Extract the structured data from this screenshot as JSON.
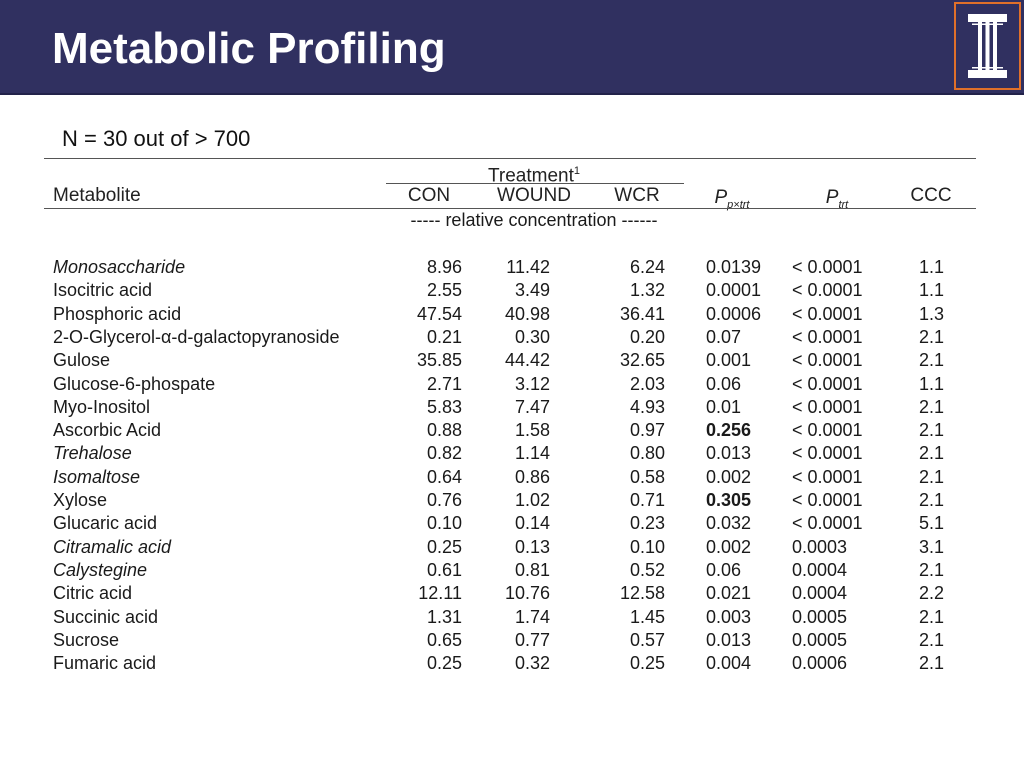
{
  "slide": {
    "title": "Metabolic Profiling",
    "subtitle": "N = 30 out of > 700"
  },
  "logo": {
    "icon": "illinois-i-logo-icon",
    "border_color": "#e0702a",
    "bg_color": "#303060"
  },
  "table": {
    "header": {
      "metabolite": "Metabolite",
      "treatment": "Treatment",
      "treatment_sup": "1",
      "con": "CON",
      "wound": "WOUND",
      "wcr": "WCR",
      "p_main": "P",
      "p_sub": "p×trt",
      "ptrt_main": "P",
      "ptrt_sub": "trt",
      "ccc": "CCC",
      "units": "----- relative concentration ------"
    },
    "rows": [
      {
        "name": "Monosaccharide",
        "italic": true,
        "con": "8.96",
        "wound": "11.42",
        "wcr": "6.24",
        "p": "0.0139",
        "bold": false,
        "ptrt": "< 0.0001",
        "ccc": "1.1"
      },
      {
        "name": "Isocitric acid",
        "italic": false,
        "con": "2.55",
        "wound": "3.49",
        "wcr": "1.32",
        "p": "0.0001",
        "bold": false,
        "ptrt": "< 0.0001",
        "ccc": "1.1"
      },
      {
        "name": "Phosphoric acid",
        "italic": false,
        "con": "47.54",
        "wound": "40.98",
        "wcr": "36.41",
        "p": "0.0006",
        "bold": false,
        "ptrt": "< 0.0001",
        "ccc": "1.3"
      },
      {
        "name": "2-O-Glycerol-α-d-galactopyranoside",
        "italic": false,
        "con": "0.21",
        "wound": "0.30",
        "wcr": "0.20",
        "p": "0.07",
        "bold": false,
        "ptrt": "< 0.0001",
        "ccc": "2.1"
      },
      {
        "name": "Gulose",
        "italic": false,
        "con": "35.85",
        "wound": "44.42",
        "wcr": "32.65",
        "p": "0.001",
        "bold": false,
        "ptrt": "< 0.0001",
        "ccc": "2.1"
      },
      {
        "name": "Glucose-6-phospate",
        "italic": false,
        "con": "2.71",
        "wound": "3.12",
        "wcr": "2.03",
        "p": "0.06",
        "bold": false,
        "ptrt": "< 0.0001",
        "ccc": "1.1"
      },
      {
        "name": "Myo-Inositol",
        "italic": false,
        "con": "5.83",
        "wound": "7.47",
        "wcr": "4.93",
        "p": "0.01",
        "bold": false,
        "ptrt": "< 0.0001",
        "ccc": "2.1"
      },
      {
        "name": "Ascorbic Acid",
        "italic": false,
        "con": "0.88",
        "wound": "1.58",
        "wcr": "0.97",
        "p": "0.256",
        "bold": true,
        "ptrt": "< 0.0001",
        "ccc": "2.1"
      },
      {
        "name": "Trehalose",
        "italic": true,
        "con": "0.82",
        "wound": "1.14",
        "wcr": "0.80",
        "p": "0.013",
        "bold": false,
        "ptrt": "< 0.0001",
        "ccc": "2.1"
      },
      {
        "name": "Isomaltose",
        "italic": true,
        "con": "0.64",
        "wound": "0.86",
        "wcr": "0.58",
        "p": "0.002",
        "bold": false,
        "ptrt": "< 0.0001",
        "ccc": "2.1"
      },
      {
        "name": "Xylose",
        "italic": false,
        "con": "0.76",
        "wound": "1.02",
        "wcr": "0.71",
        "p": "0.305",
        "bold": true,
        "ptrt": "< 0.0001",
        "ccc": "2.1"
      },
      {
        "name": "Glucaric acid",
        "italic": false,
        "con": "0.10",
        "wound": "0.14",
        "wcr": "0.23",
        "p": "0.032",
        "bold": false,
        "ptrt": "< 0.0001",
        "ccc": "5.1"
      },
      {
        "name": "Citramalic acid",
        "italic": true,
        "con": "0.25",
        "wound": "0.13",
        "wcr": "0.10",
        "p": "0.002",
        "bold": false,
        "ptrt": "0.0003",
        "ccc": "3.1"
      },
      {
        "name": "Calystegine",
        "italic": true,
        "con": "0.61",
        "wound": "0.81",
        "wcr": "0.52",
        "p": "0.06",
        "bold": false,
        "ptrt": "0.0004",
        "ccc": "2.1"
      },
      {
        "name": "Citric acid",
        "italic": false,
        "con": "12.11",
        "wound": "10.76",
        "wcr": "12.58",
        "p": "0.021",
        "bold": false,
        "ptrt": "0.0004",
        "ccc": "2.2"
      },
      {
        "name": "Succinic acid",
        "italic": false,
        "con": "1.31",
        "wound": "1.74",
        "wcr": "1.45",
        "p": "0.003",
        "bold": false,
        "ptrt": "0.0005",
        "ccc": "2.1"
      },
      {
        "name": "Sucrose",
        "italic": false,
        "con": "0.65",
        "wound": "0.77",
        "wcr": "0.57",
        "p": "0.013",
        "bold": false,
        "ptrt": "0.0005",
        "ccc": "2.1"
      },
      {
        "name": "Fumaric acid",
        "italic": false,
        "con": "0.25",
        "wound": "0.32",
        "wcr": "0.25",
        "p": "0.004",
        "bold": false,
        "ptrt": "0.0006",
        "ccc": "2.1"
      }
    ]
  }
}
